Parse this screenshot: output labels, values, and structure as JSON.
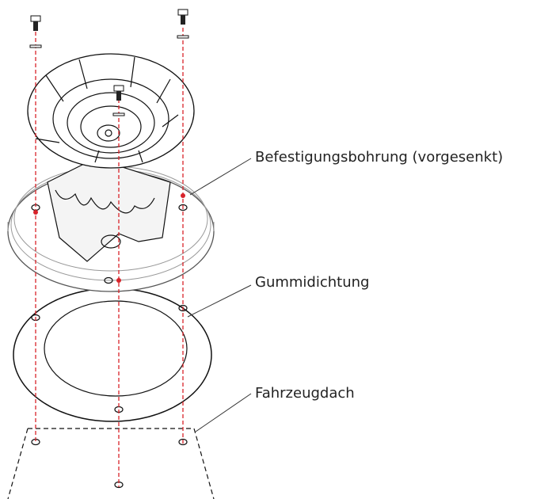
{
  "labels": {
    "mounting_hole": "Befestigungsbohrung (vorgesenkt)",
    "gasket": "Gummidichtung",
    "roof": "Fahrzeugdach"
  }
}
